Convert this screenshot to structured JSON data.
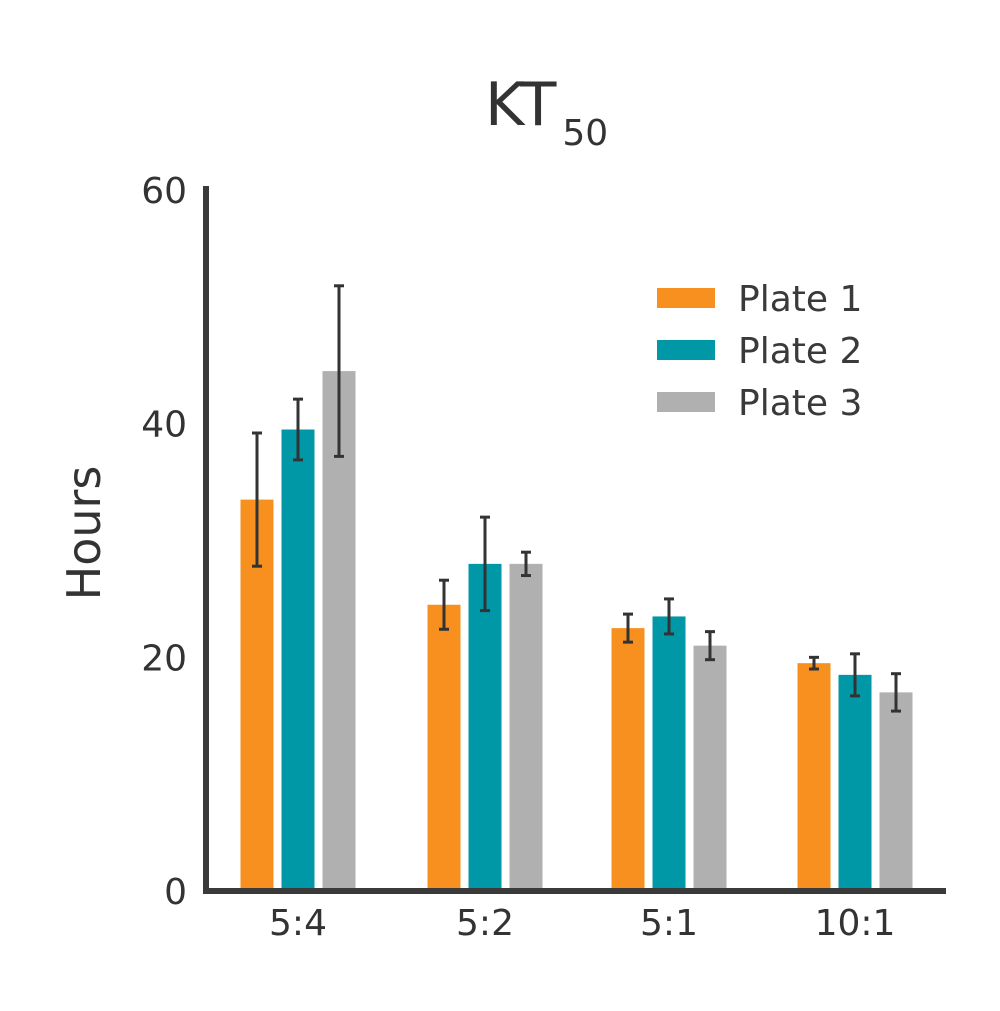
{
  "chart_data": {
    "type": "bar",
    "title": "KT",
    "title_subscript": "50",
    "xlabel": "",
    "ylabel": "Hours",
    "ylim": [
      0,
      60
    ],
    "yticks": [
      "0",
      "20",
      "40",
      "60"
    ],
    "categories": [
      "5:4",
      "5:2",
      "5:1",
      "10:1"
    ],
    "legend_position": "top-right",
    "grid": false,
    "series": [
      {
        "name": "Plate 1",
        "color": "#F7901E",
        "values": [
          33.5,
          24.5,
          22.5,
          19.5
        ],
        "errors": [
          5.7,
          2.1,
          1.2,
          0.5
        ]
      },
      {
        "name": "Plate 2",
        "color": "#0097A7",
        "values": [
          39.5,
          28,
          23.5,
          18.5
        ],
        "errors": [
          2.6,
          4.0,
          1.5,
          1.8
        ]
      },
      {
        "name": "Plate 3",
        "color": "#B0B0B0",
        "values": [
          44.5,
          28,
          21,
          17
        ],
        "errors": [
          7.3,
          1.0,
          1.2,
          1.6
        ]
      }
    ]
  }
}
